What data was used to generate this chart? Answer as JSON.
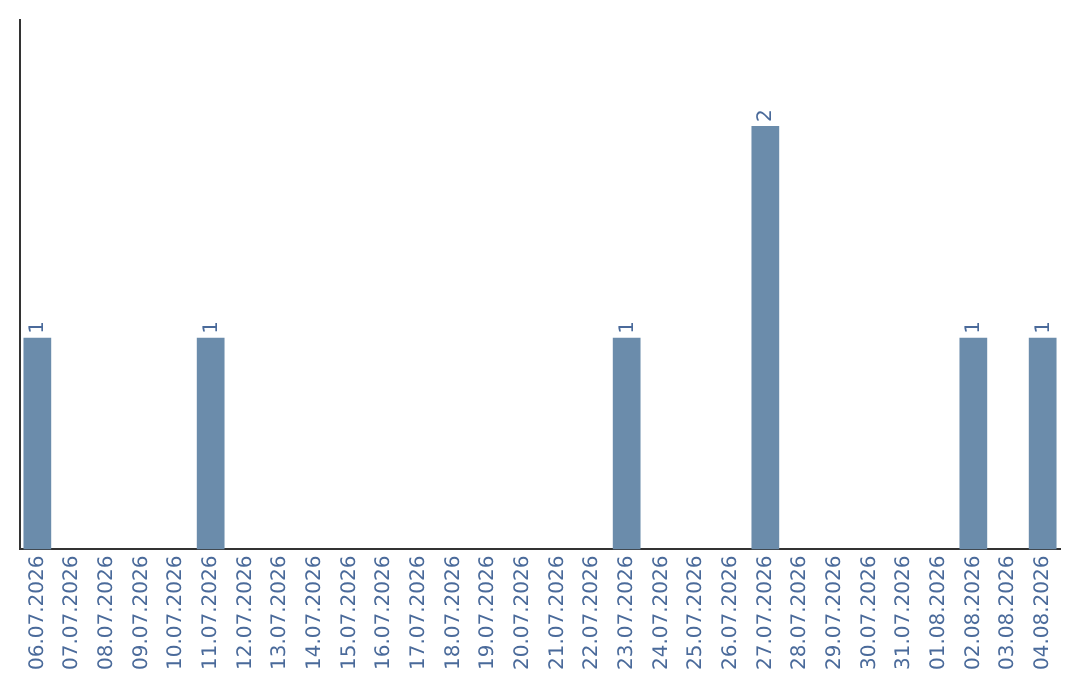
{
  "chart_data": {
    "type": "bar",
    "categories": [
      "06.07.2026",
      "07.07.2026",
      "08.07.2026",
      "09.07.2026",
      "10.07.2026",
      "11.07.2026",
      "12.07.2026",
      "13.07.2026",
      "14.07.2026",
      "15.07.2026",
      "16.07.2026",
      "17.07.2026",
      "18.07.2026",
      "19.07.2026",
      "20.07.2026",
      "21.07.2026",
      "22.07.2026",
      "23.07.2026",
      "24.07.2026",
      "25.07.2026",
      "26.07.2026",
      "27.07.2026",
      "28.07.2026",
      "29.07.2026",
      "30.07.2026",
      "31.07.2026",
      "01.08.2026",
      "02.08.2026",
      "03.08.2026",
      "04.08.2026"
    ],
    "values": [
      1,
      0,
      0,
      0,
      0,
      1,
      0,
      0,
      0,
      0,
      0,
      0,
      0,
      0,
      0,
      0,
      0,
      1,
      0,
      0,
      0,
      2,
      0,
      0,
      0,
      0,
      0,
      1,
      0,
      1
    ],
    "value_labels": [
      "1",
      null,
      null,
      null,
      null,
      "1",
      null,
      null,
      null,
      null,
      null,
      null,
      null,
      null,
      null,
      null,
      null,
      "1",
      null,
      null,
      null,
      "2",
      null,
      null,
      null,
      null,
      null,
      "1",
      null,
      "1"
    ],
    "color": "#6b8cab",
    "tick_labels": "x",
    "grid": false,
    "legend": false
  }
}
